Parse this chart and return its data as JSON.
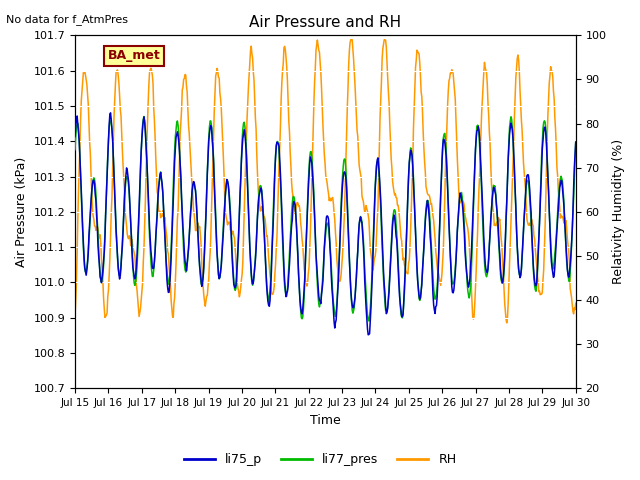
{
  "title": "Air Pressure and RH",
  "top_left_text": "No data for f_AtmPres",
  "box_label": "BA_met",
  "xlabel": "Time",
  "ylabel_left": "Air Pressure (kPa)",
  "ylabel_right": "Relativity Humidity (%)",
  "ylim_left": [
    100.7,
    101.7
  ],
  "ylim_right": [
    20,
    100
  ],
  "yticks_left": [
    100.7,
    100.8,
    100.9,
    101.0,
    101.1,
    101.2,
    101.3,
    101.4,
    101.5,
    101.6,
    101.7
  ],
  "yticks_right": [
    20,
    30,
    40,
    50,
    60,
    70,
    80,
    90,
    100
  ],
  "xticklabels": [
    "Jul 15",
    "Jul 16",
    "Jul 17",
    "Jul 18",
    "Jul 19",
    "Jul 20",
    "Jul 21",
    "Jul 22",
    "Jul 23",
    "Jul 24",
    "Jul 25",
    "Jul 26",
    "Jul 27",
    "Jul 28",
    "Jul 29",
    "Jul 30"
  ],
  "color_li75": "#0000cc",
  "color_li77": "#00bb00",
  "color_rh": "#ff9900",
  "bg_color": "#e0e0e0",
  "grid_color": "#ffffff",
  "legend_labels": [
    "li75_p",
    "li77_pres",
    "RH"
  ],
  "n_points": 720,
  "seed": 7
}
